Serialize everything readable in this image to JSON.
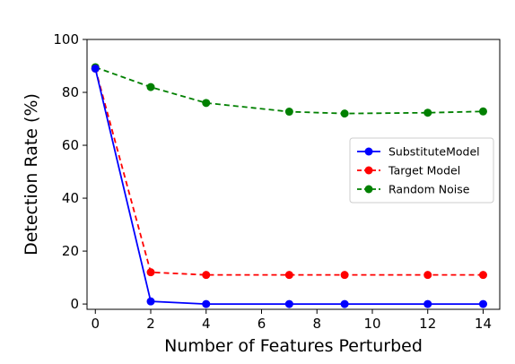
{
  "chart_data": {
    "type": "line",
    "x": [
      0,
      2,
      4,
      7,
      9,
      12,
      14
    ],
    "xticks": [
      0,
      2,
      4,
      6,
      8,
      10,
      12,
      14
    ],
    "yticks": [
      0,
      20,
      40,
      60,
      80,
      100
    ],
    "xlabel": "Number of Features Perturbed",
    "ylabel": "Detection Rate (%)",
    "xlim": [
      -0.3,
      14.6
    ],
    "ylim": [
      -2,
      100
    ],
    "grid": false,
    "legend_position": "center-right",
    "series": [
      {
        "name": "SubstituteModel",
        "values": [
          89,
          1,
          0,
          0,
          0,
          0,
          0
        ],
        "color": "#0000ff",
        "style": "solid"
      },
      {
        "name": "Target Model",
        "values": [
          89,
          12,
          11,
          11,
          11,
          11,
          11
        ],
        "color": "#ff0000",
        "style": "dashed"
      },
      {
        "name": "Random Noise",
        "values": [
          89.5,
          82,
          76,
          72.7,
          72,
          72.3,
          72.8
        ],
        "color": "#008000",
        "style": "dashed"
      }
    ]
  }
}
